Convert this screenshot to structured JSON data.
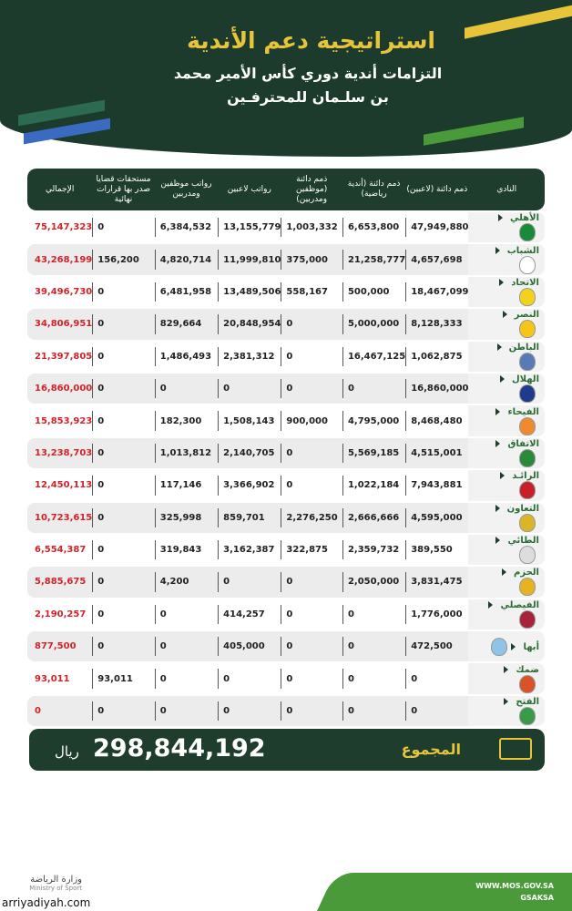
{
  "header": {
    "title": "استراتيجية دعم الأندية",
    "subtitle": "التزامات أندية دوري كأس الأمير محمد بن سلـمان للمحترفـين"
  },
  "colors": {
    "dark_green": "#1f3d2d",
    "gold": "#e7c43a",
    "red": "#d2232a",
    "green": "#4a9a3a"
  },
  "table": {
    "columns": [
      "الإجمالي",
      "مستحقات قضايا صدر بها قرارات نهائية",
      "رواتب موظفين ومدربين",
      "رواتب لاعبين",
      "ذمم دائنة (موظفين ومدربين)",
      "ذمم دائنة (أندية رياضية)",
      "ذمم دائنة (لاعبين)",
      "النادي"
    ],
    "rows": [
      {
        "club": "الأهلي",
        "logo": "#1a8a3a",
        "values": [
          "75,147,323",
          "0",
          "6,384,532",
          "13,155,779",
          "1,003,332",
          "6,653,800",
          "47,949,880"
        ]
      },
      {
        "club": "الشباب",
        "logo": "#fff",
        "values": [
          "43,268,199",
          "156,200",
          "4,820,714",
          "11,999,810",
          "375,000",
          "21,258,777",
          "4,657,698"
        ]
      },
      {
        "club": "الاتحاد",
        "logo": "#f2d21a",
        "values": [
          "39,496,730",
          "0",
          "6,481,958",
          "13,489,506",
          "558,167",
          "500,000",
          "18,467,099"
        ]
      },
      {
        "club": "النصر",
        "logo": "#f5c518",
        "values": [
          "34,806,951",
          "0",
          "829,664",
          "20,848,954",
          "0",
          "5,000,000",
          "8,128,333"
        ]
      },
      {
        "club": "الباطن",
        "logo": "#5a7ab5",
        "values": [
          "21,397,805",
          "0",
          "1,486,493",
          "2,381,312",
          "0",
          "16,467,125",
          "1,062,875"
        ]
      },
      {
        "club": "الهلال",
        "logo": "#1f3c8c",
        "values": [
          "16,860,000",
          "0",
          "0",
          "0",
          "0",
          "0",
          "16,860,000"
        ]
      },
      {
        "club": "الفيحاء",
        "logo": "#f08a30",
        "values": [
          "15,853,923",
          "0",
          "182,300",
          "1,508,143",
          "900,000",
          "4,795,000",
          "8,468,480"
        ]
      },
      {
        "club": "الاتفاق",
        "logo": "#2a8a3a",
        "values": [
          "13,238,703",
          "0",
          "1,013,812",
          "2,140,705",
          "0",
          "5,569,185",
          "4,515,001"
        ]
      },
      {
        "club": "الرائـد",
        "logo": "#c8202a",
        "values": [
          "12,450,113",
          "0",
          "117,146",
          "3,366,902",
          "0",
          "1,022,184",
          "7,943,881"
        ]
      },
      {
        "club": "التعاون",
        "logo": "#d9b52a",
        "values": [
          "10,723,615",
          "0",
          "325,998",
          "859,701",
          "2,276,250",
          "2,666,666",
          "4,595,000"
        ]
      },
      {
        "club": "الطائي",
        "logo": "#ddd",
        "values": [
          "6,554,387",
          "0",
          "319,843",
          "3,162,387",
          "322,875",
          "2,359,732",
          "389,550"
        ]
      },
      {
        "club": "الحزم",
        "logo": "#e6b422",
        "values": [
          "5,885,675",
          "0",
          "4,200",
          "0",
          "0",
          "2,050,000",
          "3,831,475"
        ]
      },
      {
        "club": "الفيصلي",
        "logo": "#a8233a",
        "values": [
          "2,190,257",
          "0",
          "0",
          "414,257",
          "0",
          "0",
          "1,776,000"
        ]
      },
      {
        "club": "أبها",
        "logo": "#8fc3e8",
        "values": [
          "877,500",
          "0",
          "0",
          "405,000",
          "0",
          "0",
          "472,500"
        ]
      },
      {
        "club": "ضمك",
        "logo": "#d8532a",
        "values": [
          "93,011",
          "93,011",
          "0",
          "0",
          "0",
          "0",
          "0"
        ]
      },
      {
        "club": "الفتح",
        "logo": "#3a9a4a",
        "values": [
          "0",
          "0",
          "0",
          "0",
          "0",
          "0",
          "0"
        ]
      }
    ]
  },
  "total": {
    "label": "المجموع",
    "value": "298,844,192",
    "currency": "ريال"
  },
  "footer": {
    "ministry": "وزارة الرياضة",
    "ministry_en": "Ministry of Sport",
    "website": "WWW.MOS.GOV.SA",
    "social": "GSAKSA",
    "watermark": "arriyadiyah.com"
  }
}
